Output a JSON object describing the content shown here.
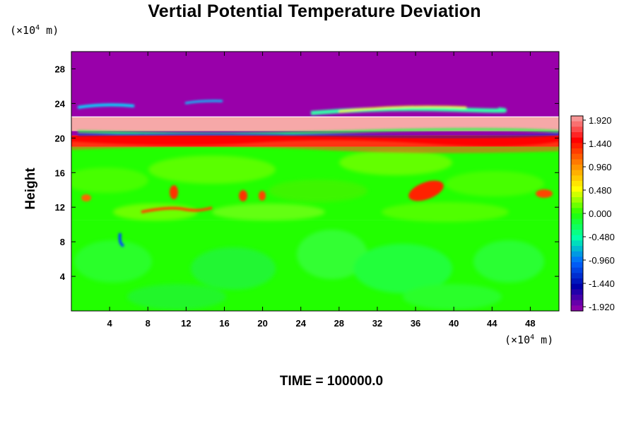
{
  "chart_data": {
    "type": "heatmap",
    "title": "Vertial Potential Temperature Deviation",
    "xlabel": "",
    "ylabel": "Height",
    "x_unit": {
      "prefix": "(×10",
      "exp": "4",
      "suffix": " m)"
    },
    "y_unit": {
      "prefix": "(×10",
      "exp": "4",
      "suffix": " m)"
    },
    "xlim": [
      0,
      51
    ],
    "ylim": [
      0,
      30
    ],
    "x_ticks": [
      "4",
      "8",
      "12",
      "16",
      "20",
      "24",
      "28",
      "32",
      "36",
      "40",
      "44",
      "48"
    ],
    "y_ticks": [
      "4",
      "8",
      "12",
      "16",
      "20",
      "24",
      "28"
    ],
    "colorbar": {
      "range": [
        -2.16,
        2.16
      ],
      "levels": [
        "1.920",
        "1.440",
        "0.960",
        "0.480",
        "0.000",
        "-0.480",
        "-0.960",
        "-1.440",
        "-1.920"
      ],
      "colors": [
        "#f6a8a8",
        "#ff0000",
        "#ff8800",
        "#ffff00",
        "#22ff00",
        "#00ffaa",
        "#0066ff",
        "#0000aa",
        "#9900aa"
      ]
    },
    "field_regions": [
      {
        "label": "upper layer",
        "y_range": [
          22.5,
          30
        ],
        "value": -1.92
      },
      {
        "label": "pink band",
        "y_range": [
          20.8,
          22.4
        ],
        "value": 2.0
      },
      {
        "label": "thin dark band",
        "y_range": [
          20.3,
          20.8
        ],
        "value": -1.8
      },
      {
        "label": "warm layer top",
        "y_range": [
          19.0,
          20.3
        ],
        "value": 1.6
      },
      {
        "label": "mid layer",
        "y_range": [
          10.5,
          19.0
        ],
        "value": 0.2
      },
      {
        "label": "lower layer",
        "y_range": [
          0,
          10.5
        ],
        "value": -0.2
      }
    ],
    "footer": "TIME = 100000.0"
  }
}
